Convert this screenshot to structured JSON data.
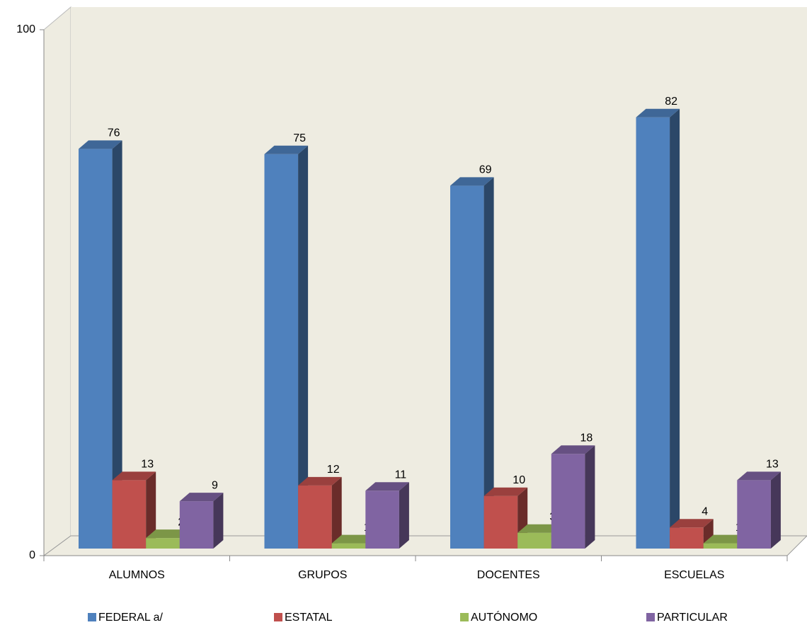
{
  "chart_data": {
    "type": "bar3d",
    "categories": [
      "ALUMNOS",
      "GRUPOS",
      "DOCENTES",
      "ESCUELAS"
    ],
    "series": [
      {
        "name": "FEDERAL a/",
        "color": "#4f81bd",
        "values": [
          76,
          75,
          69,
          82
        ]
      },
      {
        "name": "ESTATAL",
        "color": "#c0504d",
        "values": [
          13,
          12,
          10,
          4
        ]
      },
      {
        "name": "AUTÓNOMO",
        "color": "#9bbb59",
        "values": [
          2,
          1,
          3,
          1
        ]
      },
      {
        "name": "PARTICULAR",
        "color": "#8064a2",
        "values": [
          9,
          11,
          18,
          13
        ]
      }
    ],
    "ylim": [
      0,
      100
    ],
    "yticks": [
      0,
      100
    ]
  }
}
